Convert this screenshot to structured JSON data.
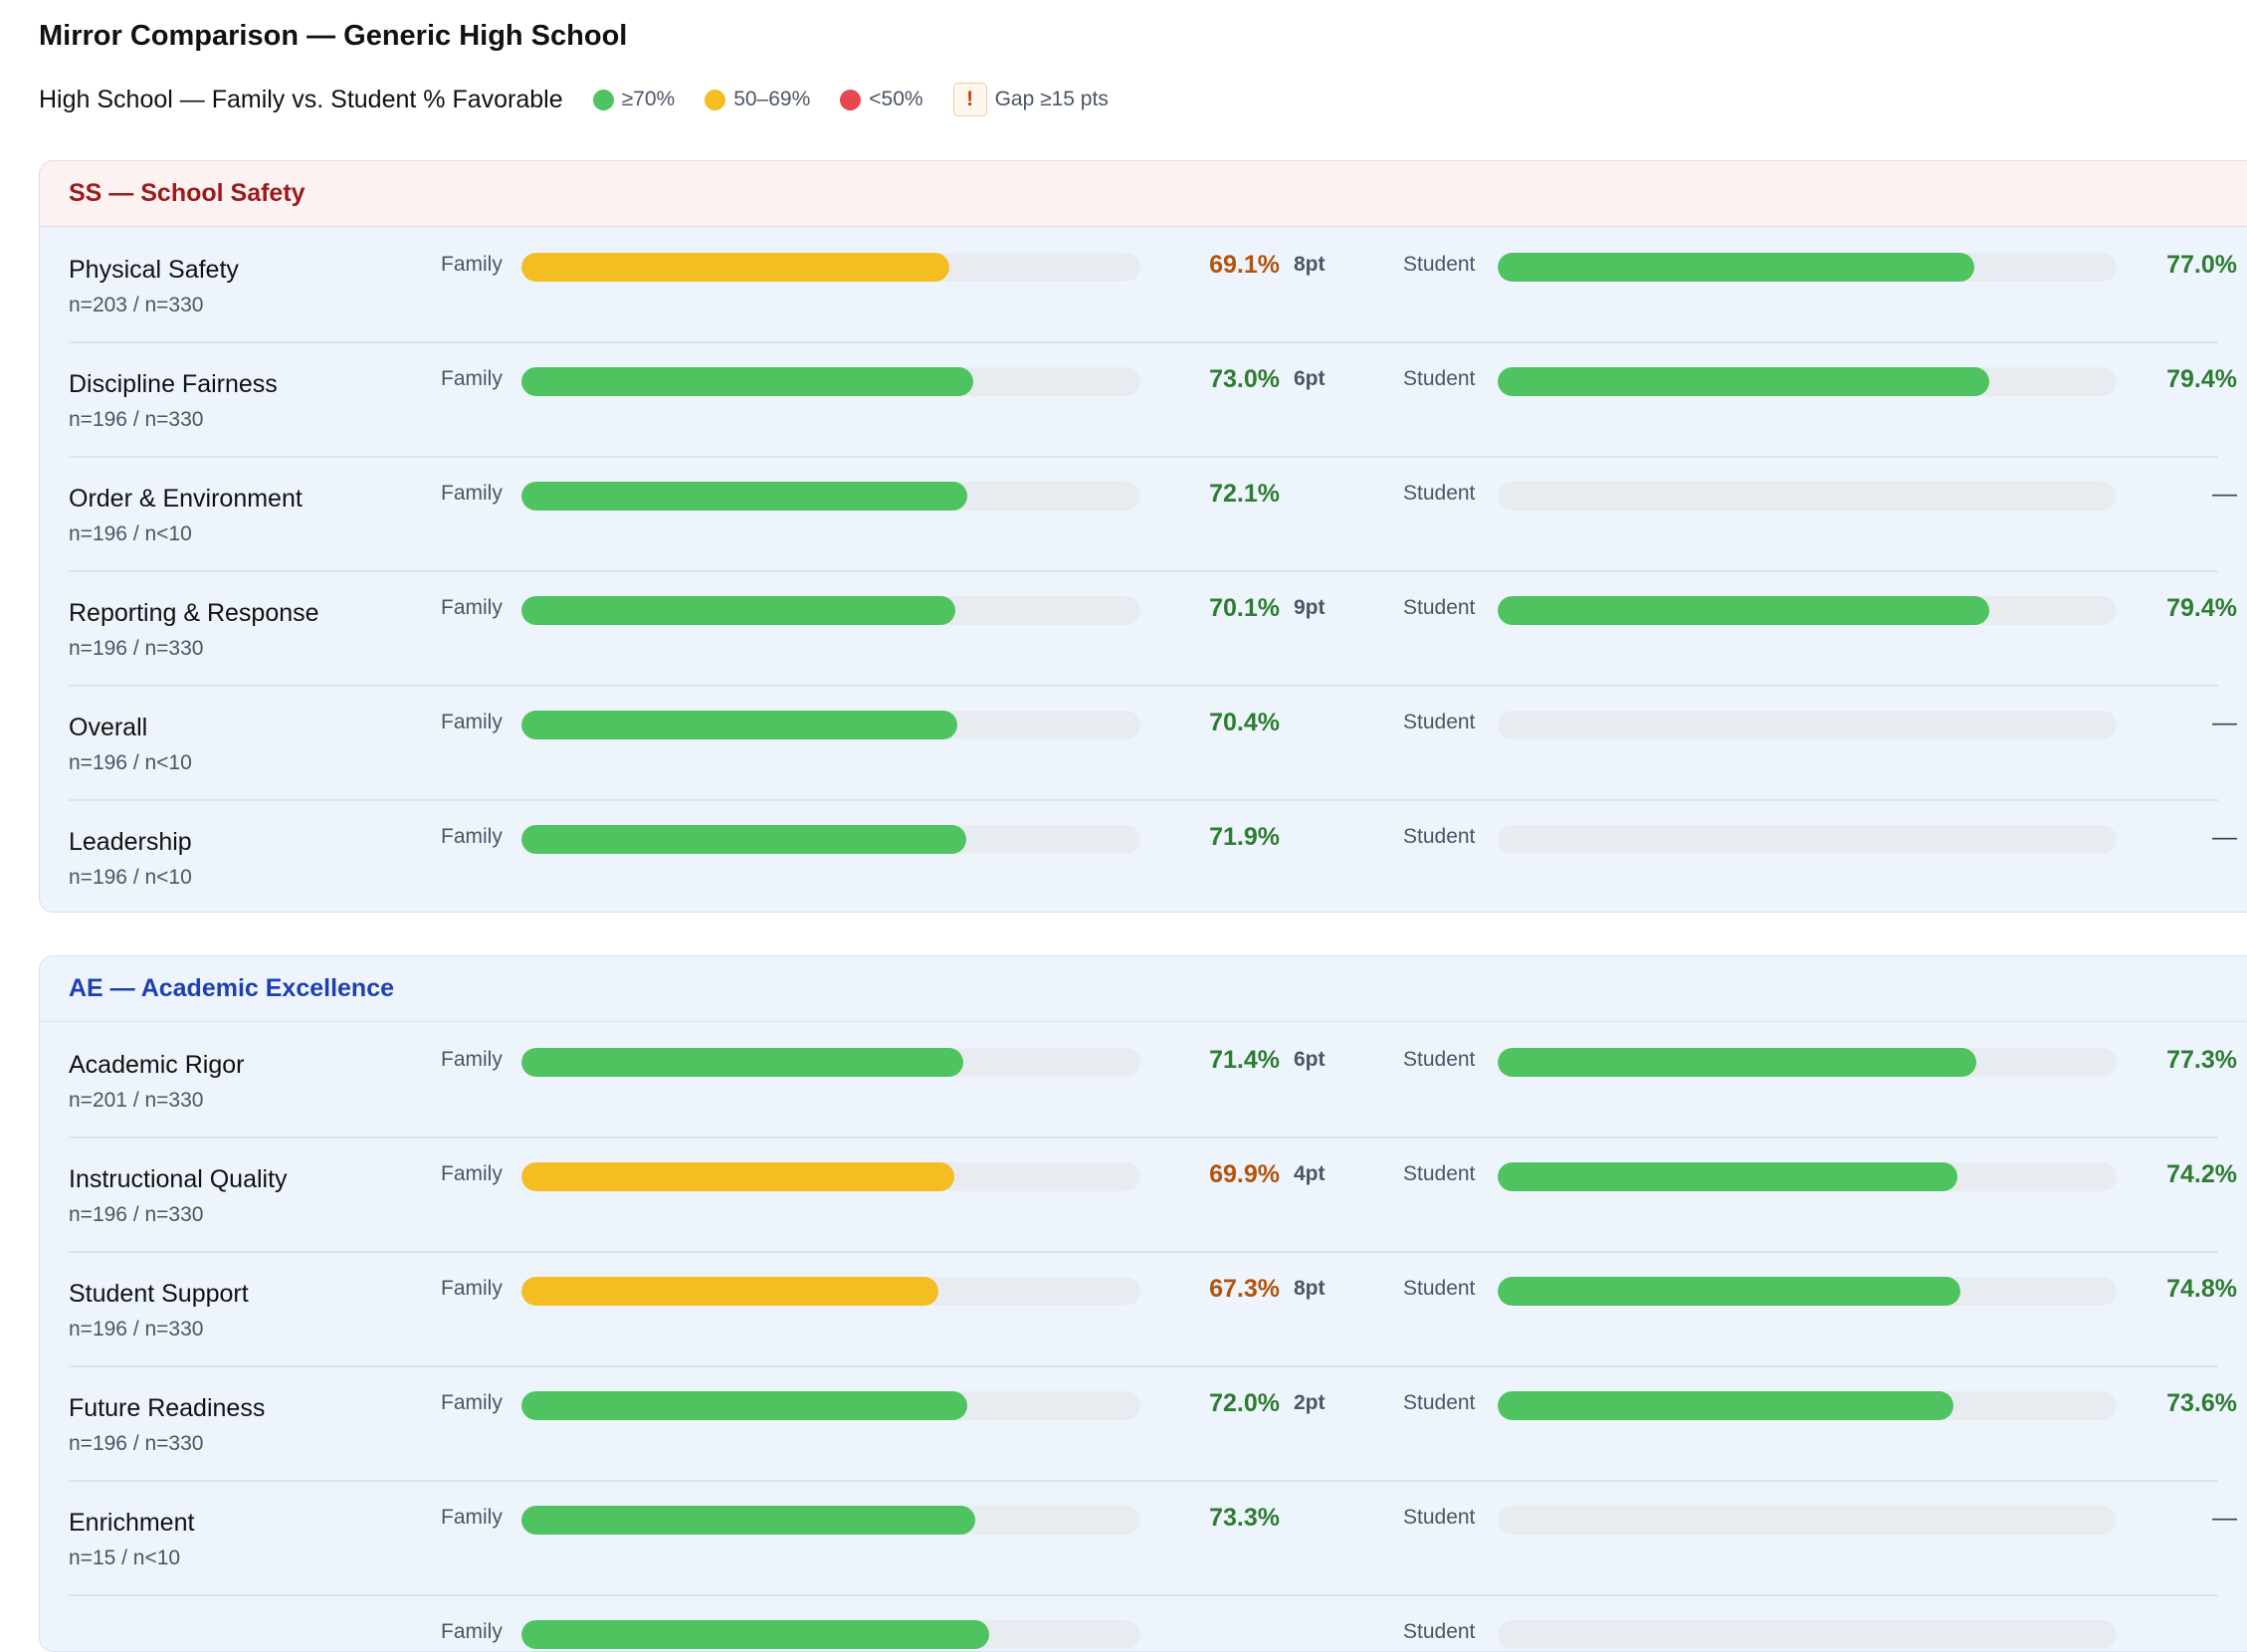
{
  "title": "Mirror Comparison — Generic High School",
  "subtitle": "High School — Family vs. Student % Favorable",
  "legend": [
    {
      "icon": "green-dot",
      "label": "≥70%",
      "color": "#4fc35f"
    },
    {
      "icon": "amber-dot",
      "label": "50–69%",
      "color": "#f4bd22"
    },
    {
      "icon": "red-dot",
      "label": "<50%",
      "color": "#e5484d"
    }
  ],
  "gap_legend": {
    "symbol": "!",
    "label": "Gap ≥15 pts"
  },
  "colors": {
    "green": "#4fc35f",
    "amber": "#f4bd22",
    "green_text": "#2e7d32",
    "amber_text": "#b45309"
  },
  "family_label": "Family",
  "student_label": "Student",
  "sections": [
    {
      "title": "SS — School Safety",
      "rows": [
        {
          "name": "Physical Safety",
          "n": "n=203 / n=330",
          "family": "69.1%",
          "family_value": 69.1,
          "gap": "8pt",
          "student": "77.0%",
          "student_value": 77.0
        },
        {
          "name": "Discipline Fairness",
          "n": "n=196 / n=330",
          "family": "73.0%",
          "family_value": 73.0,
          "gap": "6pt",
          "student": "79.4%",
          "student_value": 79.4
        },
        {
          "name": "Order & Environment",
          "n": "n=196 / n<10",
          "family": "72.1%",
          "family_value": 72.1,
          "gap": "",
          "student": "—",
          "student_value": null
        },
        {
          "name": "Reporting & Response",
          "n": "n=196 / n=330",
          "family": "70.1%",
          "family_value": 70.1,
          "gap": "9pt",
          "student": "79.4%",
          "student_value": 79.4
        },
        {
          "name": "Overall",
          "n": "n=196 / n<10",
          "family": "70.4%",
          "family_value": 70.4,
          "gap": "",
          "student": "—",
          "student_value": null
        },
        {
          "name": "Leadership",
          "n": "n=196 / n<10",
          "family": "71.9%",
          "family_value": 71.9,
          "gap": "",
          "student": "—",
          "student_value": null
        }
      ]
    },
    {
      "title": "AE — Academic Excellence",
      "rows": [
        {
          "name": "Academic Rigor",
          "n": "n=201 / n=330",
          "family": "71.4%",
          "family_value": 71.4,
          "gap": "6pt",
          "student": "77.3%",
          "student_value": 77.3
        },
        {
          "name": "Instructional Quality",
          "n": "n=196 / n=330",
          "family": "69.9%",
          "family_value": 69.9,
          "gap": "4pt",
          "student": "74.2%",
          "student_value": 74.2
        },
        {
          "name": "Student Support",
          "n": "n=196 / n=330",
          "family": "67.3%",
          "family_value": 67.3,
          "gap": "8pt",
          "student": "74.8%",
          "student_value": 74.8
        },
        {
          "name": "Future Readiness",
          "n": "n=196 / n=330",
          "family": "72.0%",
          "family_value": 72.0,
          "gap": "2pt",
          "student": "73.6%",
          "student_value": 73.6
        },
        {
          "name": "Enrichment",
          "n": "n=15 / n<10",
          "family": "73.3%",
          "family_value": 73.3,
          "gap": "",
          "student": "—",
          "student_value": null
        },
        {
          "name": "",
          "n": "",
          "family": "",
          "family_value": 75.5,
          "gap": "",
          "student": "",
          "student_value": null
        }
      ]
    }
  ]
}
